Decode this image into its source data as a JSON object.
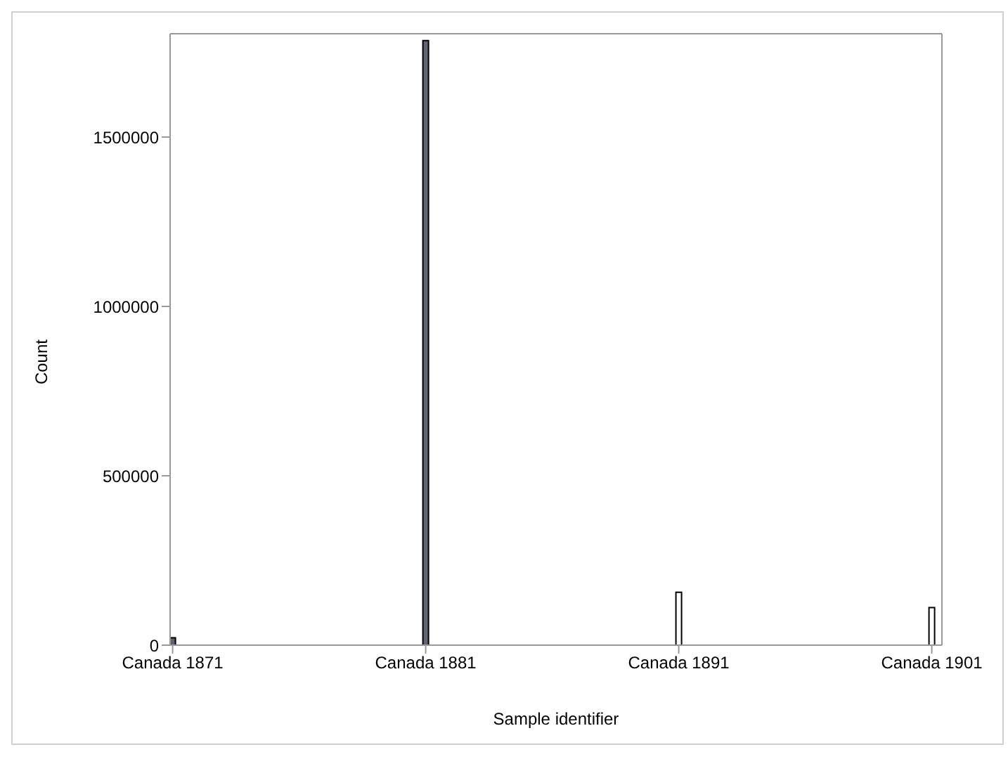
{
  "chart_data": {
    "type": "bar",
    "xlabel": "Sample identifier",
    "ylabel": "Count",
    "categories": [
      "Canada 1871",
      "Canada 1881",
      "Canada 1891",
      "Canada 1901"
    ],
    "values": [
      22000,
      1785000,
      156000,
      111000
    ],
    "colors": [
      "#5f6670",
      "#5f6670",
      "#ffffff",
      "#ffffff"
    ],
    "ylim": [
      0,
      1805000
    ],
    "yticks": [
      0,
      500000,
      1000000,
      1500000
    ],
    "grid": false,
    "legend": false
  }
}
